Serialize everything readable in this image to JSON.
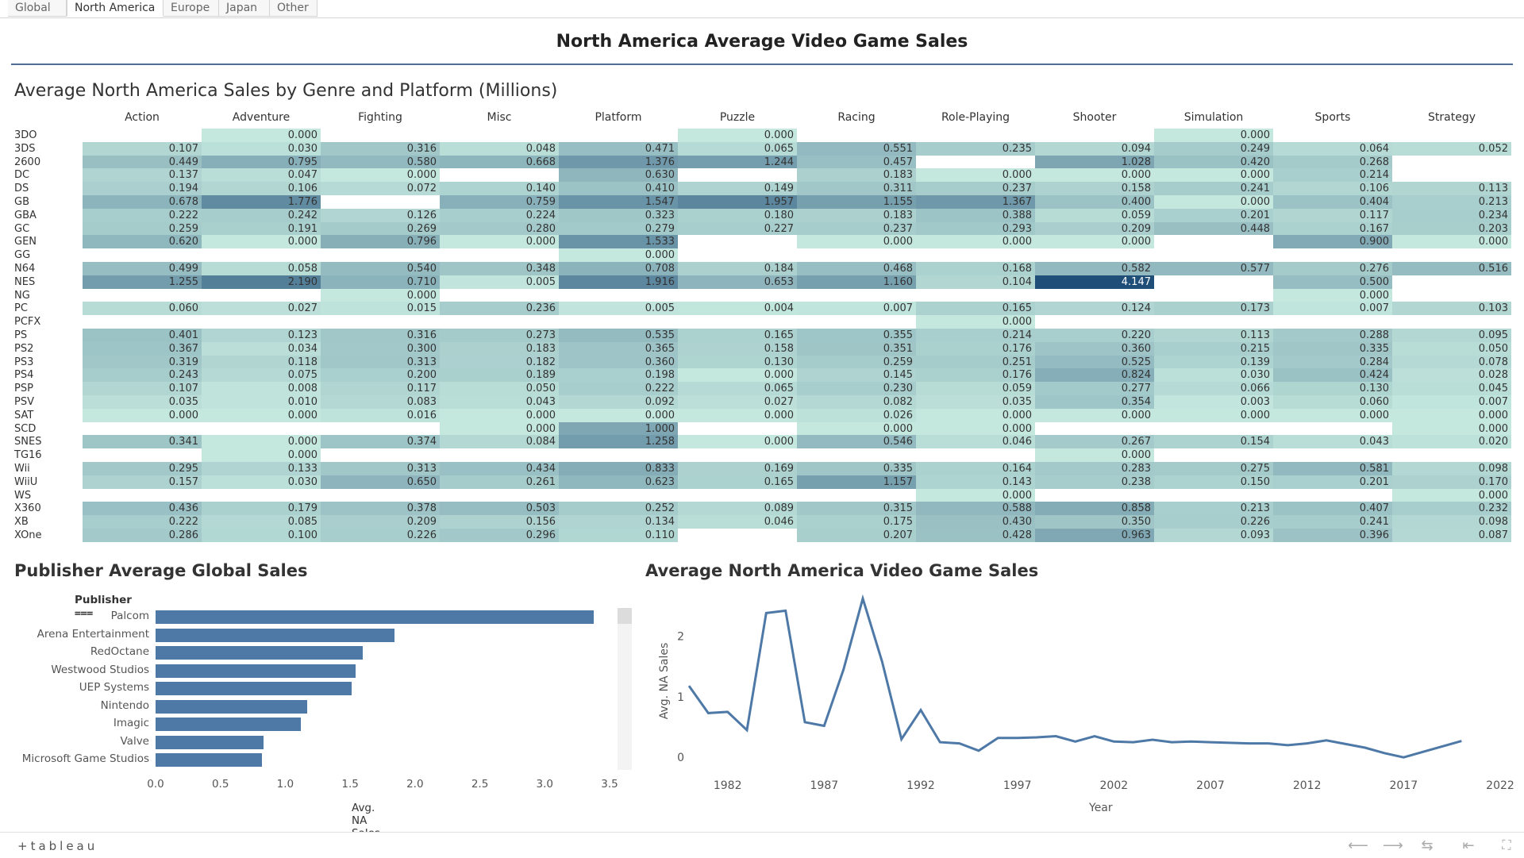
{
  "tabs": [
    "Global",
    "North America",
    "Europe",
    "Japan",
    "Other"
  ],
  "active_tab": "North America",
  "dashboard_title": "North America Average Video Game Sales",
  "heatmap": {
    "title": "Average North America Sales by Genre and Platform (Millions)",
    "columns": [
      "Action",
      "Adventure",
      "Fighting",
      "Misc",
      "Platform",
      "Puzzle",
      "Racing",
      "Role-Playing",
      "Shooter",
      "Simulation",
      "Sports",
      "Strategy"
    ],
    "rows": [
      {
        "platform": "3DO",
        "values": [
          null,
          "0.000",
          null,
          null,
          null,
          "0.000",
          null,
          null,
          null,
          "0.000",
          null,
          null
        ]
      },
      {
        "platform": "3DS",
        "values": [
          "0.107",
          "0.030",
          "0.316",
          "0.048",
          "0.471",
          "0.065",
          "0.551",
          "0.235",
          "0.094",
          "0.249",
          "0.064",
          "0.052"
        ]
      },
      {
        "platform": "2600",
        "values": [
          "0.449",
          "0.795",
          "0.580",
          "0.668",
          "1.376",
          "1.244",
          "0.457",
          null,
          "1.028",
          "0.420",
          "0.268",
          null
        ]
      },
      {
        "platform": "DC",
        "values": [
          "0.137",
          "0.047",
          "0.000",
          null,
          "0.630",
          null,
          "0.183",
          "0.000",
          "0.000",
          "0.000",
          "0.214",
          null
        ]
      },
      {
        "platform": "DS",
        "values": [
          "0.194",
          "0.106",
          "0.072",
          "0.140",
          "0.410",
          "0.149",
          "0.311",
          "0.237",
          "0.158",
          "0.241",
          "0.106",
          "0.113"
        ]
      },
      {
        "platform": "GB",
        "values": [
          "0.678",
          "1.776",
          null,
          "0.759",
          "1.547",
          "1.957",
          "1.155",
          "1.367",
          "0.400",
          "0.000",
          "0.404",
          "0.213"
        ]
      },
      {
        "platform": "GBA",
        "values": [
          "0.222",
          "0.242",
          "0.126",
          "0.224",
          "0.323",
          "0.180",
          "0.183",
          "0.388",
          "0.059",
          "0.201",
          "0.117",
          "0.234"
        ]
      },
      {
        "platform": "GC",
        "values": [
          "0.259",
          "0.191",
          "0.269",
          "0.280",
          "0.279",
          "0.227",
          "0.237",
          "0.293",
          "0.209",
          "0.448",
          "0.167",
          "0.203"
        ]
      },
      {
        "platform": "GEN",
        "values": [
          "0.620",
          "0.000",
          "0.796",
          "0.000",
          "1.533",
          null,
          "0.000",
          "0.000",
          "0.000",
          null,
          "0.900",
          "0.000"
        ]
      },
      {
        "platform": "GG",
        "values": [
          null,
          null,
          null,
          null,
          "0.000",
          null,
          null,
          null,
          null,
          null,
          null,
          null
        ]
      },
      {
        "platform": "N64",
        "values": [
          "0.499",
          "0.058",
          "0.540",
          "0.348",
          "0.708",
          "0.184",
          "0.468",
          "0.168",
          "0.582",
          "0.577",
          "0.276",
          "0.516"
        ]
      },
      {
        "platform": "NES",
        "values": [
          "1.255",
          "2.190",
          "0.710",
          "0.005",
          "1.916",
          "0.653",
          "1.160",
          "0.104",
          "4.147",
          null,
          "0.500",
          null
        ]
      },
      {
        "platform": "NG",
        "values": [
          null,
          null,
          "0.000",
          null,
          null,
          null,
          null,
          null,
          null,
          null,
          "0.000",
          null
        ]
      },
      {
        "platform": "PC",
        "values": [
          "0.060",
          "0.027",
          "0.015",
          "0.236",
          "0.005",
          "0.004",
          "0.007",
          "0.165",
          "0.124",
          "0.173",
          "0.007",
          "0.103"
        ]
      },
      {
        "platform": "PCFX",
        "values": [
          null,
          null,
          null,
          null,
          null,
          null,
          null,
          "0.000",
          null,
          null,
          null,
          null
        ]
      },
      {
        "platform": "PS",
        "values": [
          "0.401",
          "0.123",
          "0.316",
          "0.273",
          "0.535",
          "0.165",
          "0.355",
          "0.214",
          "0.220",
          "0.113",
          "0.288",
          "0.095"
        ]
      },
      {
        "platform": "PS2",
        "values": [
          "0.367",
          "0.034",
          "0.300",
          "0.183",
          "0.365",
          "0.158",
          "0.351",
          "0.176",
          "0.360",
          "0.215",
          "0.335",
          "0.050"
        ]
      },
      {
        "platform": "PS3",
        "values": [
          "0.319",
          "0.118",
          "0.313",
          "0.182",
          "0.360",
          "0.130",
          "0.259",
          "0.251",
          "0.525",
          "0.139",
          "0.284",
          "0.078"
        ]
      },
      {
        "platform": "PS4",
        "values": [
          "0.243",
          "0.075",
          "0.200",
          "0.189",
          "0.198",
          "0.000",
          "0.145",
          "0.176",
          "0.824",
          "0.030",
          "0.424",
          "0.028"
        ]
      },
      {
        "platform": "PSP",
        "values": [
          "0.107",
          "0.008",
          "0.117",
          "0.050",
          "0.222",
          "0.065",
          "0.230",
          "0.059",
          "0.277",
          "0.066",
          "0.130",
          "0.045"
        ]
      },
      {
        "platform": "PSV",
        "values": [
          "0.035",
          "0.010",
          "0.083",
          "0.043",
          "0.092",
          "0.027",
          "0.082",
          "0.035",
          "0.354",
          "0.003",
          "0.060",
          "0.007"
        ]
      },
      {
        "platform": "SAT",
        "values": [
          "0.000",
          "0.000",
          "0.016",
          "0.000",
          "0.000",
          "0.000",
          "0.026",
          "0.000",
          "0.000",
          "0.000",
          "0.000",
          "0.000"
        ]
      },
      {
        "platform": "SCD",
        "values": [
          null,
          null,
          null,
          "0.000",
          "1.000",
          null,
          "0.000",
          "0.000",
          null,
          null,
          null,
          "0.000"
        ]
      },
      {
        "platform": "SNES",
        "values": [
          "0.341",
          "0.000",
          "0.374",
          "0.084",
          "1.258",
          "0.000",
          "0.546",
          "0.046",
          "0.267",
          "0.154",
          "0.043",
          "0.020"
        ]
      },
      {
        "platform": "TG16",
        "values": [
          null,
          "0.000",
          null,
          null,
          null,
          null,
          null,
          null,
          "0.000",
          null,
          null,
          null
        ]
      },
      {
        "platform": "Wii",
        "values": [
          "0.295",
          "0.133",
          "0.313",
          "0.434",
          "0.833",
          "0.169",
          "0.335",
          "0.164",
          "0.283",
          "0.275",
          "0.581",
          "0.098"
        ]
      },
      {
        "platform": "WiiU",
        "values": [
          "0.157",
          "0.030",
          "0.650",
          "0.261",
          "0.623",
          "0.165",
          "1.157",
          "0.143",
          "0.238",
          "0.150",
          "0.201",
          "0.170"
        ]
      },
      {
        "platform": "WS",
        "values": [
          null,
          null,
          null,
          null,
          null,
          null,
          null,
          "0.000",
          null,
          null,
          null,
          "0.000"
        ]
      },
      {
        "platform": "X360",
        "values": [
          "0.436",
          "0.179",
          "0.378",
          "0.503",
          "0.252",
          "0.089",
          "0.315",
          "0.588",
          "0.858",
          "0.213",
          "0.407",
          "0.232"
        ]
      },
      {
        "platform": "XB",
        "values": [
          "0.222",
          "0.085",
          "0.209",
          "0.156",
          "0.134",
          "0.046",
          "0.175",
          "0.430",
          "0.350",
          "0.226",
          "0.241",
          "0.098"
        ]
      },
      {
        "platform": "XOne",
        "values": [
          "0.286",
          "0.100",
          "0.226",
          "0.296",
          "0.110",
          null,
          "0.207",
          "0.428",
          "0.963",
          "0.093",
          "0.396",
          "0.087"
        ]
      }
    ],
    "color_low": "#c4e8de",
    "color_high": "#1f4e79"
  },
  "publisher_chart": {
    "title": "Publisher Average Global Sales",
    "header_label": "Publisher",
    "axis_label": "Avg. NA Sales",
    "publishers": [
      "Palcom",
      "Arena Entertainment",
      "RedOctane",
      "Westwood Studios",
      "UEP Systems",
      "Nintendo",
      "Imagic",
      "Valve",
      "Microsoft Game Studios"
    ],
    "values": [
      3.38,
      1.84,
      1.6,
      1.54,
      1.51,
      1.17,
      1.12,
      0.83,
      0.82
    ],
    "ticks": [
      "0.0",
      "0.5",
      "1.0",
      "1.5",
      "2.0",
      "2.5",
      "3.0",
      "3.5"
    ],
    "xlim": [
      0,
      3.5
    ],
    "bar_color": "#4e79a7"
  },
  "chart_data": {
    "type": "line",
    "title": "Average North America Video Game Sales",
    "xlabel": "Year",
    "ylabel": "Avg. NA Sales",
    "x": [
      1980,
      1981,
      1982,
      1983,
      1984,
      1985,
      1986,
      1987,
      1988,
      1989,
      1990,
      1991,
      1992,
      1993,
      1994,
      1995,
      1996,
      1997,
      1998,
      1999,
      2000,
      2001,
      2002,
      2003,
      2004,
      2005,
      2006,
      2007,
      2008,
      2009,
      2010,
      2011,
      2012,
      2013,
      2014,
      2015,
      2016,
      2017,
      2020
    ],
    "values": [
      1.18,
      0.73,
      0.75,
      0.45,
      2.38,
      2.42,
      0.58,
      0.52,
      1.45,
      2.62,
      1.58,
      0.3,
      0.78,
      0.25,
      0.23,
      0.11,
      0.32,
      0.32,
      0.33,
      0.35,
      0.26,
      0.35,
      0.26,
      0.25,
      0.29,
      0.25,
      0.26,
      0.25,
      0.24,
      0.23,
      0.23,
      0.2,
      0.23,
      0.28,
      0.22,
      0.16,
      0.07,
      0.0,
      0.27
    ],
    "xticks": [
      "1982",
      "1987",
      "1992",
      "1997",
      "2002",
      "2007",
      "2012",
      "2017",
      "2022"
    ],
    "yticks": [
      "0",
      "1",
      "2"
    ],
    "xlim": [
      1980,
      2022
    ],
    "ylim": [
      -0.05,
      2.7
    ],
    "line_color": "#4e79a7"
  },
  "footer": {
    "logo": "+tableau",
    "buttons": [
      "undo-icon",
      "redo-icon",
      "revert-icon",
      "first-page-icon",
      "fullscreen-icon"
    ]
  }
}
